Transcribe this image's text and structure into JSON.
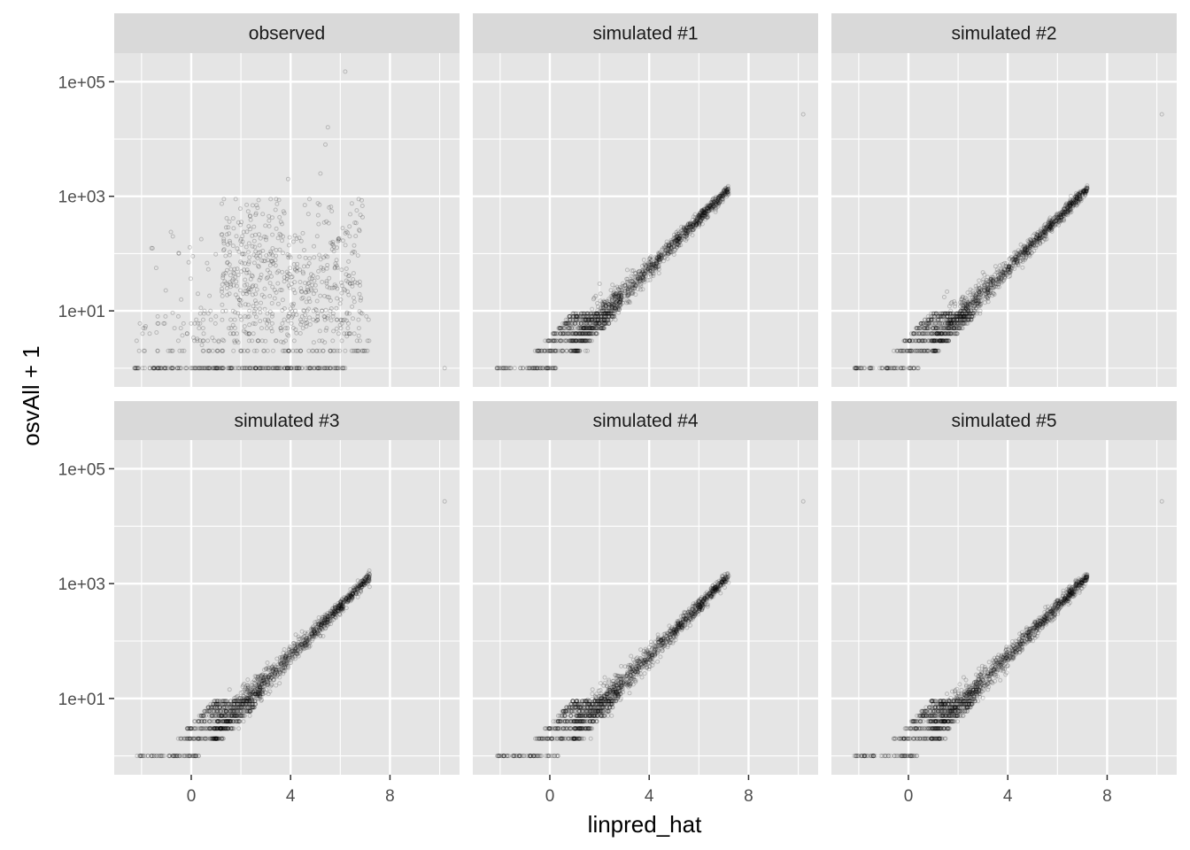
{
  "chart_data": {
    "type": "scatter",
    "facets": [
      "observed",
      "simulated #1",
      "simulated #2",
      "simulated #3",
      "simulated #4",
      "simulated #5"
    ],
    "xlabel": "linpred_hat",
    "ylabel": "osvAll + 1",
    "x_ticks": [
      0,
      4,
      8
    ],
    "x_tick_labels": [
      "0",
      "4",
      "8"
    ],
    "xlim": [
      -3.1,
      10.8
    ],
    "y_scale": "log10",
    "y_ticks": [
      10,
      1000,
      100000
    ],
    "y_tick_labels": [
      "1e+01",
      "1e+03",
      "1e+05"
    ],
    "ylim": [
      0.47,
      316000
    ],
    "point_color": "#000000",
    "point_alpha": 0.2,
    "grid": true,
    "panel_background": "#e5e5e5",
    "strip_background": "#d9d9d9",
    "series_description": {
      "observed": {
        "zero_band": {
          "y": 1,
          "x_range": [
            -2.3,
            6.2
          ]
        },
        "counts": {
          "x_range": [
            -2.2,
            7.2
          ],
          "y_range": [
            2,
            900
          ]
        },
        "outliers": [
          [
            6.2,
            150000
          ],
          [
            5.5,
            16000
          ],
          [
            5.4,
            8000
          ],
          [
            5.2,
            2500
          ],
          [
            3.9,
            2000
          ],
          [
            10.2,
            1
          ]
        ]
      },
      "simulated": {
        "trend": "log10(y) = x / 2.303, concentrated band along the fitted line",
        "x_range": [
          -2.3,
          7.2
        ],
        "y_range": [
          1,
          1400
        ],
        "outlier": [
          10.2,
          27000
        ]
      }
    }
  }
}
